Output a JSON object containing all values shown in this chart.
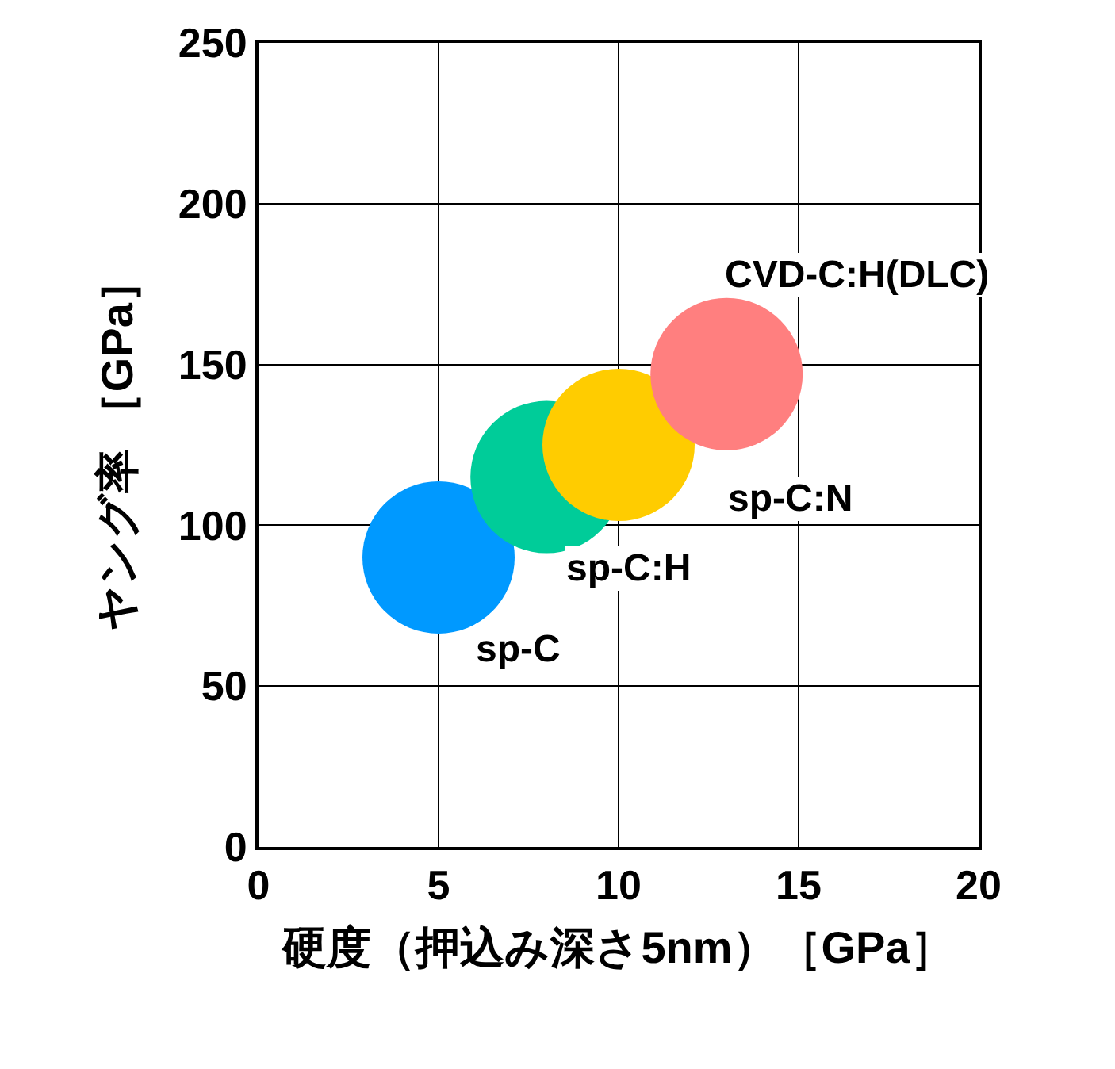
{
  "chart_data": {
    "type": "bubble",
    "xlabel": "硬度（押込み深さ5nm）［GPa］",
    "ylabel": "ヤング率 ［GPa］",
    "xlim": [
      0,
      20
    ],
    "xticks": [
      0,
      5,
      10,
      15,
      20
    ],
    "ylim": [
      0,
      250
    ],
    "yticks": [
      0,
      50,
      100,
      150,
      200,
      250
    ],
    "grid": true,
    "legend": false,
    "series": [
      {
        "name": "sp-C",
        "color": "#0099ff",
        "x": [
          5
        ],
        "values": [
          90
        ],
        "sizes": [
          1
        ]
      },
      {
        "name": "sp-C:H",
        "color": "#00cc99",
        "x": [
          8
        ],
        "values": [
          115
        ],
        "sizes": [
          1
        ]
      },
      {
        "name": "sp-C:N",
        "color": "#ffcc00",
        "x": [
          10
        ],
        "values": [
          125
        ],
        "sizes": [
          1
        ]
      },
      {
        "name": "CVD-C:H(DLC)",
        "color": "#ff7f7f",
        "x": [
          13
        ],
        "values": [
          147
        ],
        "sizes": [
          1
        ]
      }
    ]
  }
}
